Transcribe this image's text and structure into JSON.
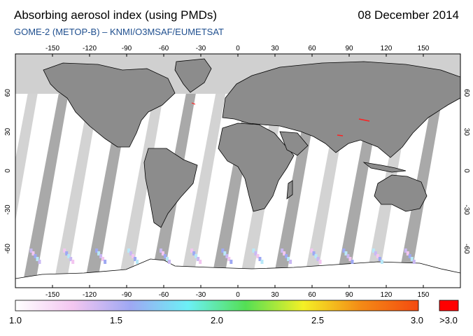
{
  "header": {
    "title": "Absorbing aerosol index (using PMDs)",
    "date": "08 December 2014",
    "subtitle": "GOME-2 (METOP-B)  –  KNMI/O3MSAF/EUMETSAT"
  },
  "map": {
    "lon_ticks": [
      "-150",
      "-120",
      "-90",
      "-60",
      "-30",
      "0",
      "30",
      "60",
      "90",
      "120",
      "150"
    ],
    "lat_ticks": [
      "60",
      "30",
      "0",
      "-30",
      "-60"
    ],
    "lon_range": [
      -180,
      180
    ],
    "lat_range": [
      -90,
      90
    ],
    "no_data_color": "#d0d0d0",
    "land_color": "#8c8c8c",
    "swath_gap_colors": [
      "#d3d3d3",
      "#a9a9a9"
    ]
  },
  "colorbar": {
    "labels": [
      "1.0",
      "1.5",
      "2.0",
      "2.5",
      "3.0"
    ],
    "over_label": ">3.0",
    "range": [
      1.0,
      3.0
    ],
    "colors": [
      "#ffffff",
      "#f3c6f0",
      "#9ea8f3",
      "#6cf0f5",
      "#54df54",
      "#f4f026",
      "#f48a16",
      "#f44a10"
    ],
    "over_color": "#ff0000"
  }
}
